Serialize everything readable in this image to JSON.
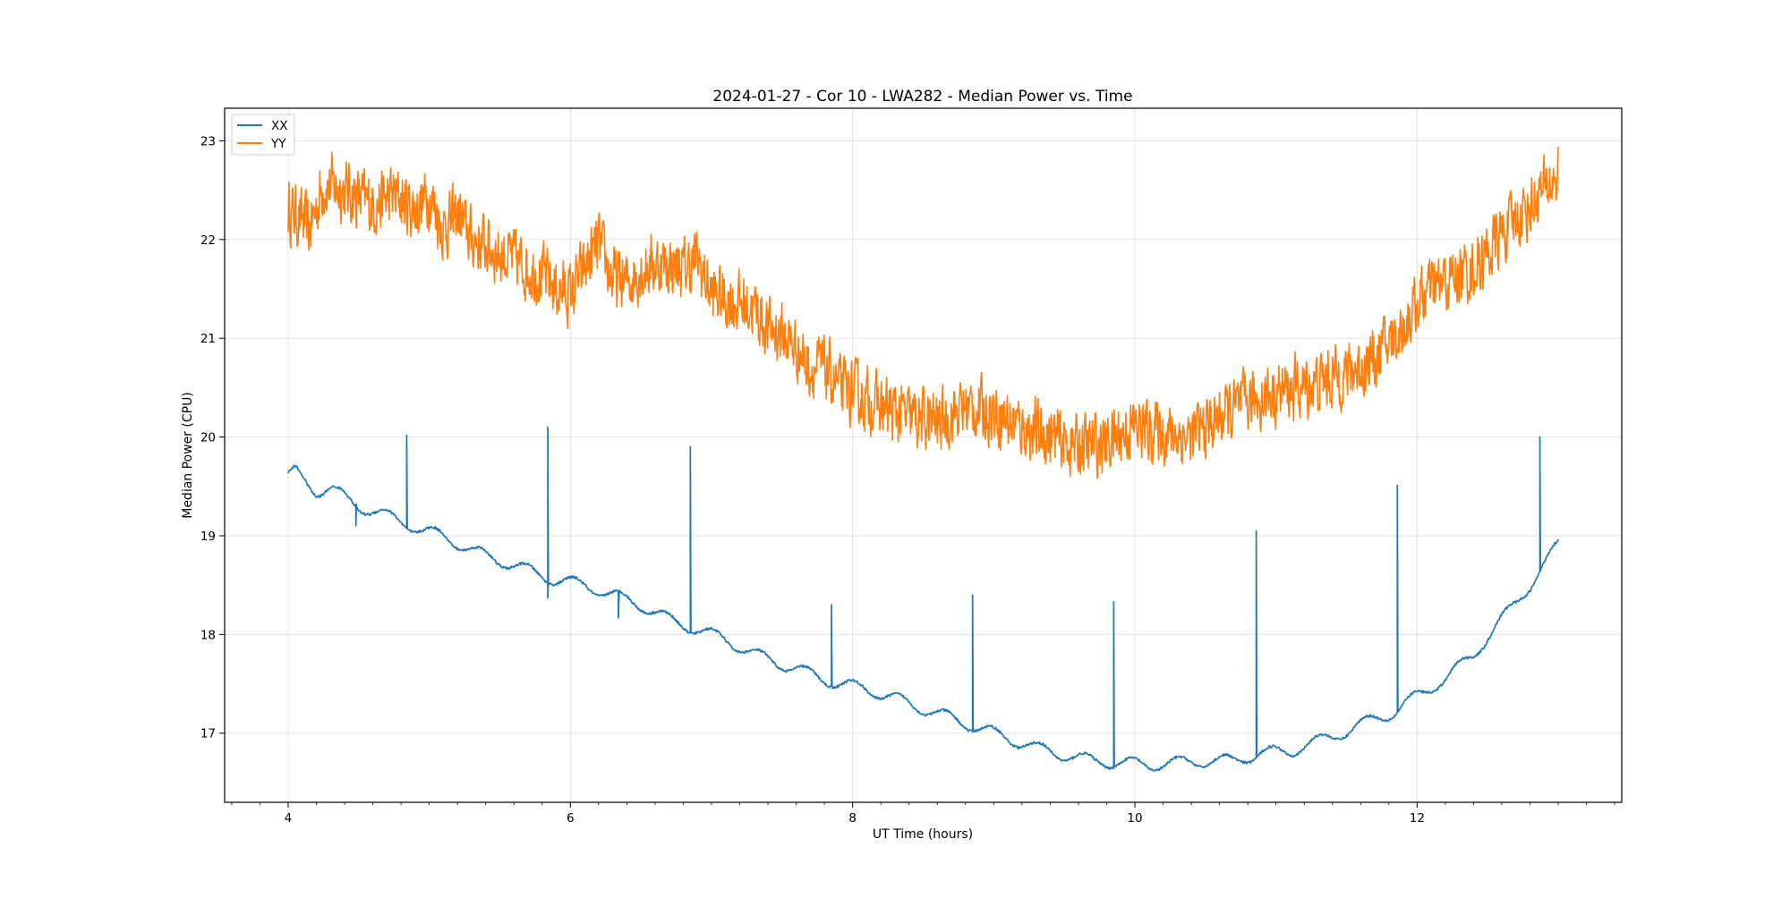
{
  "chart_data": {
    "type": "line",
    "title": "2024-01-27 - Cor 10 - LWA282 - Median Power vs. Time",
    "xlabel": "UT Time (hours)",
    "ylabel": "Median Power (CPU)",
    "xlim": [
      3.55,
      13.45
    ],
    "ylim": [
      16.3,
      23.33
    ],
    "x_ticks": [
      4,
      6,
      8,
      10,
      12
    ],
    "x_tick_labels": [
      "4",
      "6",
      "8",
      "10",
      "12"
    ],
    "y_ticks": [
      17,
      18,
      19,
      20,
      21,
      22,
      23
    ],
    "y_tick_labels": [
      "17",
      "18",
      "19",
      "20",
      "21",
      "22",
      "23"
    ],
    "grid": true,
    "legend_position": "top-left",
    "series": [
      {
        "name": "XX",
        "color": "#1f77b4",
        "x": [
          4.0,
          4.05,
          4.2,
          4.3,
          4.5,
          4.6,
          4.8,
          4.95,
          5.1,
          5.3,
          5.5,
          5.7,
          5.9,
          6.1,
          6.3,
          6.5,
          6.7,
          6.9,
          7.1,
          7.3,
          7.5,
          7.7,
          7.9,
          8.1,
          8.3,
          8.5,
          8.7,
          8.9,
          9.1,
          9.3,
          9.5,
          9.7,
          9.9,
          10.1,
          10.3,
          10.5,
          10.7,
          10.9,
          11.1,
          11.3,
          11.5,
          11.7,
          11.85,
          12.0,
          12.2,
          12.4,
          12.6,
          12.8,
          12.9,
          13.0
        ],
        "values": [
          19.6,
          19.65,
          19.45,
          19.48,
          19.3,
          19.25,
          19.15,
          19.05,
          19.0,
          18.85,
          18.75,
          18.65,
          18.55,
          18.5,
          18.4,
          18.3,
          18.15,
          18.05,
          17.95,
          17.8,
          17.7,
          17.6,
          17.5,
          17.45,
          17.35,
          17.25,
          17.15,
          17.05,
          16.95,
          16.85,
          16.78,
          16.72,
          16.7,
          16.68,
          16.7,
          16.72,
          16.72,
          16.8,
          16.82,
          16.92,
          17.02,
          17.15,
          17.22,
          17.38,
          17.55,
          17.8,
          18.15,
          18.5,
          18.7,
          18.92
        ],
        "spikes": [
          {
            "x": 4.48,
            "value": 19.1
          },
          {
            "x": 4.84,
            "value": 20.02
          },
          {
            "x": 5.84,
            "value": 20.1
          },
          {
            "x": 5.84,
            "value": 18.37
          },
          {
            "x": 6.34,
            "value": 18.17
          },
          {
            "x": 6.85,
            "value": 19.9
          },
          {
            "x": 7.85,
            "value": 18.3
          },
          {
            "x": 8.85,
            "value": 18.4
          },
          {
            "x": 9.85,
            "value": 18.33
          },
          {
            "x": 10.86,
            "value": 19.05
          },
          {
            "x": 11.86,
            "value": 19.51
          },
          {
            "x": 12.87,
            "value": 20.0
          }
        ]
      },
      {
        "name": "YY",
        "color": "#ff7f0e",
        "x": [
          4.0,
          4.1,
          4.15,
          4.25,
          4.4,
          4.6,
          4.75,
          4.9,
          5.0,
          5.1,
          5.2,
          5.3,
          5.4,
          5.5,
          5.6,
          5.7,
          5.8,
          5.9,
          6.0,
          6.1,
          6.2,
          6.3,
          6.4,
          6.5,
          6.6,
          6.7,
          6.8,
          6.9,
          7.0,
          7.1,
          7.2,
          7.3,
          7.4,
          7.5,
          7.6,
          7.7,
          7.8,
          7.9,
          8.0,
          8.2,
          8.4,
          8.6,
          8.8,
          9.0,
          9.2,
          9.4,
          9.6,
          9.8,
          10.0,
          10.2,
          10.4,
          10.6,
          10.8,
          11.0,
          11.2,
          11.4,
          11.6,
          11.7,
          11.8,
          11.9,
          12.0,
          12.1,
          12.2,
          12.3,
          12.4,
          12.5,
          12.6,
          12.7,
          12.8,
          12.9,
          13.0
        ],
        "values": [
          22.3,
          22.2,
          22.1,
          22.55,
          22.5,
          22.35,
          22.45,
          22.3,
          22.45,
          22.1,
          22.25,
          22.0,
          21.95,
          21.85,
          21.8,
          21.7,
          21.65,
          21.5,
          21.45,
          21.7,
          21.95,
          21.6,
          21.55,
          21.7,
          21.75,
          21.75,
          21.7,
          21.8,
          21.45,
          21.4,
          21.35,
          21.3,
          21.1,
          21.05,
          20.9,
          20.7,
          20.7,
          20.5,
          20.45,
          20.3,
          20.2,
          20.15,
          20.3,
          20.25,
          20.1,
          20.0,
          19.9,
          19.95,
          20.1,
          20.05,
          20.0,
          20.2,
          20.35,
          20.45,
          20.5,
          20.6,
          20.7,
          20.8,
          20.95,
          21.1,
          21.35,
          21.5,
          21.55,
          21.65,
          21.7,
          21.85,
          22.05,
          22.2,
          22.35,
          22.5,
          22.65
        ],
        "noise_amplitude": 0.28
      }
    ]
  }
}
